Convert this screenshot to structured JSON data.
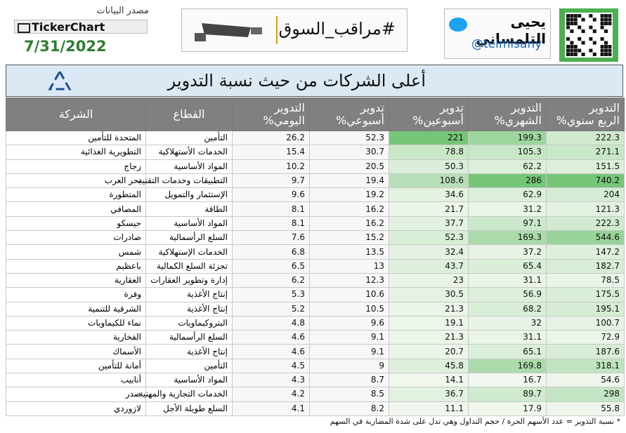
{
  "header": {
    "source_label": "مصدر البيانات",
    "source": "TickerChart",
    "date": "7/31/2022",
    "hashtag": "#مراقب_السوق",
    "author": "يحيى التلمساني",
    "handle": "@telmisany"
  },
  "title": "أعلى الشركات من حيث نسبة التدوير",
  "table": {
    "columns": [
      [
        "الشركة"
      ],
      [
        "القطاع"
      ],
      [
        "التدوير",
        "اليومي%"
      ],
      [
        "تدوير",
        "أسبوعي%"
      ],
      [
        "تدوير",
        "أسبوعين%"
      ],
      [
        "التدوير",
        "الشهري%"
      ],
      [
        "التدوير",
        "الربع سنوي%"
      ]
    ],
    "rows": [
      [
        "المتحدة للتأمين",
        "التأمين",
        26.2,
        52.3,
        221,
        199.3,
        222.3
      ],
      [
        "التطويرية الغذائية",
        "الخدمات الأستهلاكية",
        15.4,
        30.7,
        78.8,
        105.3,
        271.1
      ],
      [
        "زجاج",
        "المواد الأساسية",
        10.2,
        20.5,
        50.3,
        62.2,
        151.5
      ],
      [
        "بحر العرب",
        "التطبيقات وخدمات التقنية",
        9.7,
        19.4,
        108.6,
        286,
        740.2
      ],
      [
        "المتطورة",
        "الإستثمار والتمويل",
        9.6,
        19.2,
        34.6,
        62.9,
        204
      ],
      [
        "المصافي",
        "الطاقة",
        8.1,
        16.2,
        21.7,
        31.2,
        121.3
      ],
      [
        "جيسكو",
        "المواد الأساسية",
        8.1,
        16.2,
        37.7,
        97.1,
        222.3
      ],
      [
        "صادرات",
        "السلع الرأسمالية",
        7.6,
        15.2,
        52.3,
        169.3,
        544.6
      ],
      [
        "شمس",
        "الخدمات الإستهلاكية",
        6.8,
        13.5,
        32.4,
        37.2,
        147.2
      ],
      [
        "باعظيم",
        "تجزئة السلع الكمالية",
        6.5,
        13,
        43.7,
        65.4,
        182.7
      ],
      [
        "العقارية",
        "إدارة وتطوير العقارات",
        6.2,
        12.3,
        23,
        31.1,
        78.5
      ],
      [
        "وفرة",
        "إنتاج الأغذية",
        5.3,
        10.6,
        30.5,
        56.9,
        175.5
      ],
      [
        "الشرقية للتنمية",
        "إنتاج الأغذية",
        5.2,
        10.5,
        21.3,
        68.2,
        195.1
      ],
      [
        "نماء للكيماويات",
        "البتروكيماويات",
        4.8,
        9.6,
        19.1,
        32,
        100.7
      ],
      [
        "الفخارية",
        "السلع الرأسمالية",
        4.6,
        9.1,
        21.3,
        31.1,
        72.9
      ],
      [
        "الأسماك",
        "إنتاج الأغذية",
        4.6,
        9.1,
        20.7,
        65.1,
        187.6
      ],
      [
        "أمانة للتأمين",
        "التأمين",
        4.5,
        9,
        45.8,
        169.8,
        318.1
      ],
      [
        "أنابيب",
        "المواد الأساسية",
        4.3,
        8.7,
        14.1,
        16.7,
        54.6
      ],
      [
        "صدر",
        "الخدمات التجارية والمهنية",
        4.2,
        8.5,
        36.7,
        89.7,
        298
      ],
      [
        "لازوردي",
        "السلع طويلة الأجل",
        4.1,
        8.2,
        11.1,
        17.9,
        55.8
      ]
    ]
  },
  "footnote": "* نسبة التدوير = عدد الأسهم الحرة / حجم التداول وهي تدل على شدة المضاربة في السهم"
}
